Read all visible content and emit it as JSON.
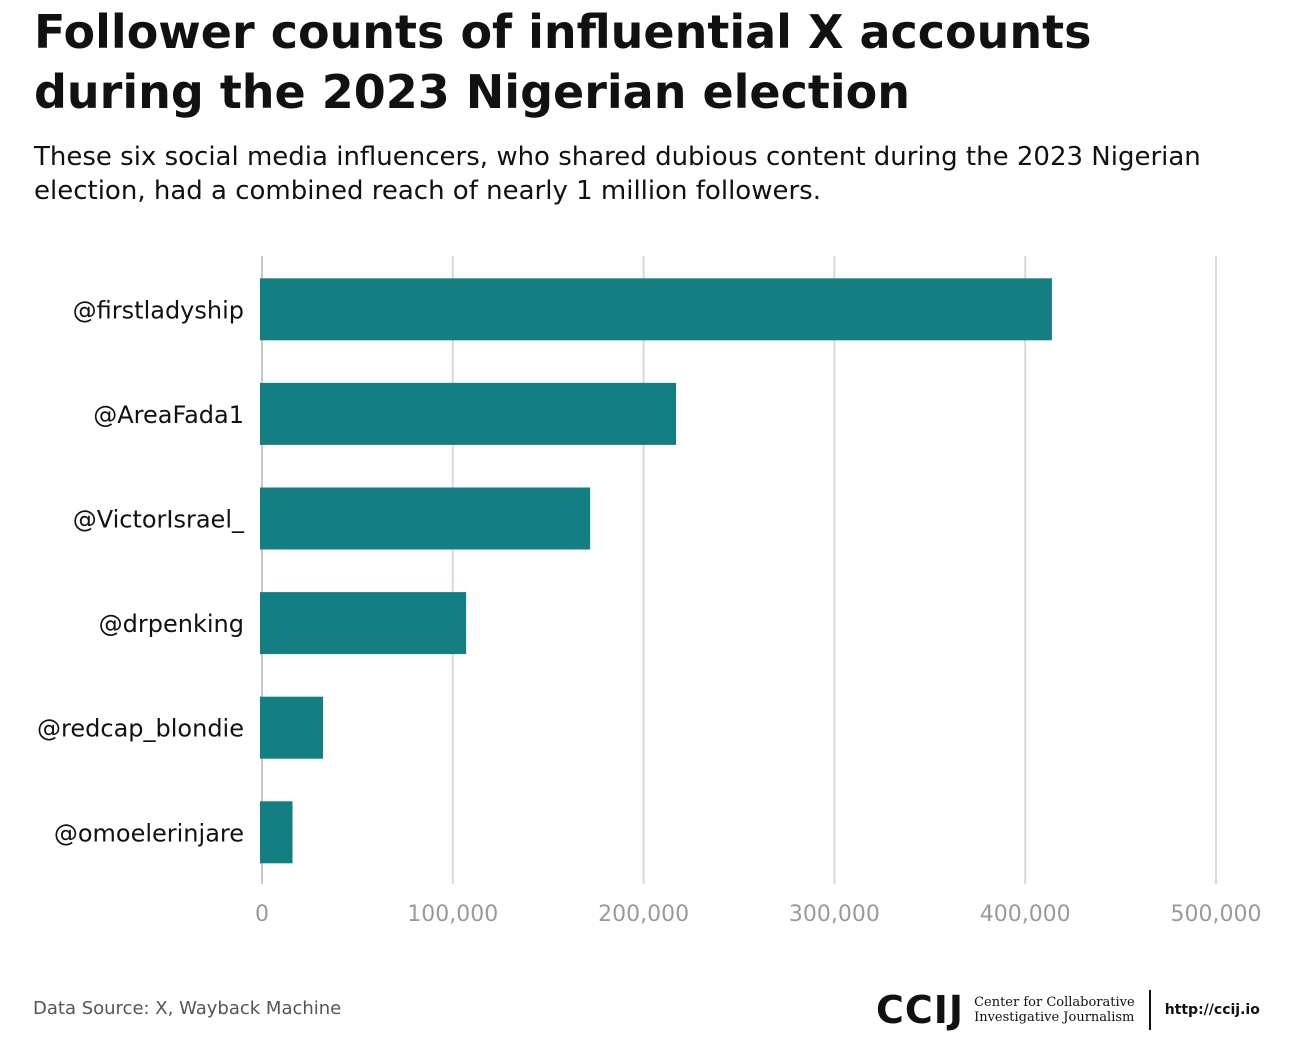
{
  "header": {
    "title": "Follower counts of influential X accounts during the 2023 Nigerian election",
    "subtitle": "These six social media influencers, who shared dubious content during the 2023 Nigerian election, had a combined reach of nearly 1 million followers."
  },
  "chart_data": {
    "type": "bar",
    "orientation": "horizontal",
    "title": "Follower counts of influential X accounts during the 2023 Nigerian election",
    "xlabel": "",
    "ylabel": "",
    "categories": [
      "@firstladyship",
      "@AreaFada1",
      "@VictorIsrael_",
      "@drpenking",
      "@redcap_blondie",
      "@omoelerinjare"
    ],
    "values": [
      414000,
      217000,
      172000,
      107000,
      32000,
      16000
    ],
    "xlim": [
      0,
      500000
    ],
    "xticks": [
      0,
      100000,
      200000,
      300000,
      400000,
      500000
    ],
    "xtick_labels": [
      "0",
      "100,000",
      "200,000",
      "300,000",
      "400,000",
      "500,000"
    ],
    "grid": "vertical",
    "bar_color": "#137f82"
  },
  "footer": {
    "source": "Data Source: X, Wayback Machine",
    "logo_mark": "CCIJ",
    "logo_line1": "Center for Collaborative",
    "logo_line2": "Investigative Journalism",
    "url": "http://ccij.io"
  }
}
